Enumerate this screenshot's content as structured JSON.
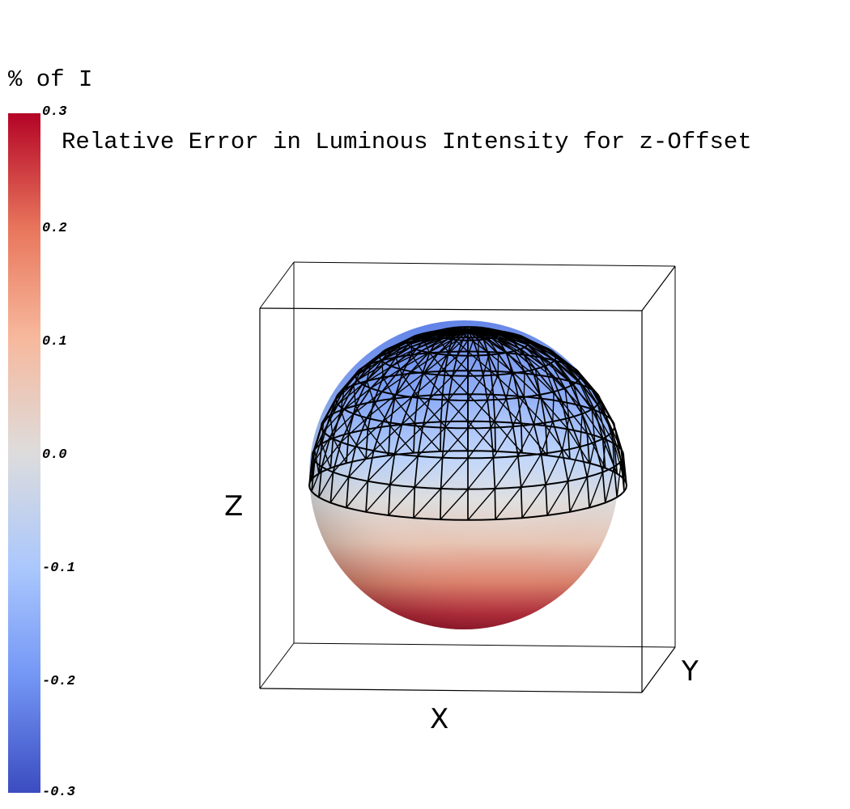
{
  "chart_data": {
    "type": "other",
    "title": "Relative Error in Luminous Intensity for z-Offset",
    "colorbar": {
      "title": "% of I",
      "range": [
        -0.3,
        0.3
      ],
      "ticks": [
        "0.3",
        "0.2",
        "0.1",
        "0.0",
        "-0.1",
        "-0.2",
        "-0.3"
      ],
      "colormap": "coolwarm",
      "colors": [
        "#b40426",
        "#e8765c",
        "#f7b89c",
        "#dddcdc",
        "#aac7fd",
        "#7396f5",
        "#3b4cc0"
      ]
    },
    "axes": {
      "x": "X",
      "y": "Y",
      "z": "Z"
    }
  }
}
